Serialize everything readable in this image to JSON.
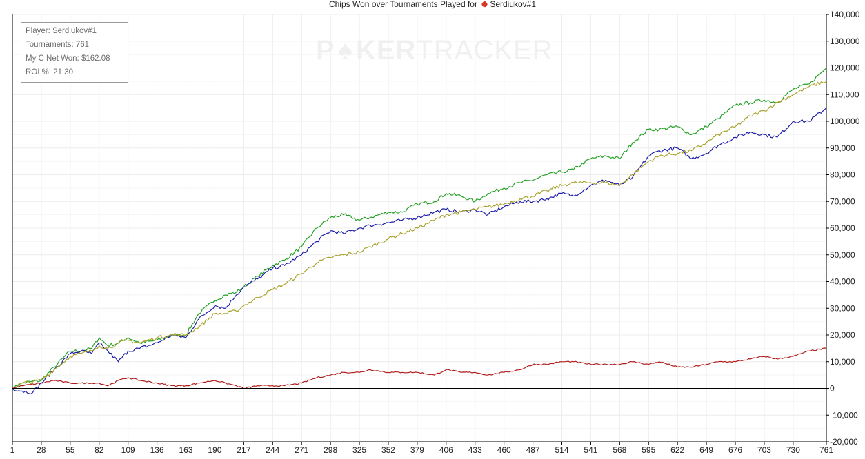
{
  "header": {
    "title_prefix": "Chips Won over Tournaments Played for",
    "player": "Serdiukov#1"
  },
  "info_box": {
    "player": "Player: Serdiukov#1",
    "tournaments": "Tournaments: 761",
    "net_won": "My C Net Won: $162.08",
    "roi": "ROI %: 21.30"
  },
  "watermark": {
    "part1": "P",
    "part2": "KER",
    "part3": "TRACKER"
  },
  "colors": {
    "green": "#22a022",
    "blue": "#1c1caa",
    "olive": "#a8a22a",
    "red": "#b01c1c",
    "grid": "#ececec",
    "zero_line": "#000000"
  },
  "chart_data": {
    "type": "line",
    "title": "Chips Won over Tournaments Played for Serdiukov#1",
    "xlabel": "",
    "ylabel": "",
    "xlim": [
      1,
      761
    ],
    "ylim": [
      -20000,
      140000
    ],
    "x_ticks": [
      "1",
      "28",
      "55",
      "82",
      "109",
      "136",
      "163",
      "190",
      "217",
      "244",
      "271",
      "298",
      "325",
      "352",
      "379",
      "406",
      "433",
      "460",
      "487",
      "514",
      "541",
      "568",
      "595",
      "622",
      "649",
      "676",
      "703",
      "730",
      "761"
    ],
    "y_ticks": [
      "-20,000",
      "-10,000",
      "0",
      "10,000",
      "20,000",
      "30,000",
      "40,000",
      "50,000",
      "60,000",
      "70,000",
      "80,000",
      "90,000",
      "100,000",
      "110,000",
      "120,000",
      "130,000",
      "140,000"
    ],
    "grid": true,
    "series": [
      {
        "color": "green",
        "points": [
          [
            1,
            0
          ],
          [
            10,
            2000
          ],
          [
            28,
            3000
          ],
          [
            40,
            8000
          ],
          [
            55,
            14000
          ],
          [
            65,
            14000
          ],
          [
            75,
            15000
          ],
          [
            82,
            19000
          ],
          [
            90,
            16000
          ],
          [
            100,
            17000
          ],
          [
            109,
            19000
          ],
          [
            120,
            17000
          ],
          [
            136,
            18000
          ],
          [
            150,
            20000
          ],
          [
            163,
            20000
          ],
          [
            175,
            28000
          ],
          [
            190,
            33000
          ],
          [
            200,
            35000
          ],
          [
            210,
            36000
          ],
          [
            217,
            38000
          ],
          [
            230,
            42000
          ],
          [
            244,
            46000
          ],
          [
            255,
            48000
          ],
          [
            271,
            53000
          ],
          [
            285,
            60000
          ],
          [
            298,
            64000
          ],
          [
            310,
            65000
          ],
          [
            325,
            63000
          ],
          [
            335,
            64000
          ],
          [
            352,
            66000
          ],
          [
            365,
            66000
          ],
          [
            379,
            69000
          ],
          [
            395,
            70000
          ],
          [
            406,
            73000
          ],
          [
            420,
            72000
          ],
          [
            433,
            70000
          ],
          [
            445,
            73000
          ],
          [
            460,
            75000
          ],
          [
            475,
            77000
          ],
          [
            487,
            78000
          ],
          [
            500,
            80000
          ],
          [
            514,
            81000
          ],
          [
            525,
            82000
          ],
          [
            541,
            86000
          ],
          [
            555,
            87000
          ],
          [
            568,
            86000
          ],
          [
            580,
            92000
          ],
          [
            595,
            97000
          ],
          [
            605,
            97000
          ],
          [
            622,
            98000
          ],
          [
            635,
            95000
          ],
          [
            649,
            98000
          ],
          [
            660,
            101000
          ],
          [
            676,
            106000
          ],
          [
            690,
            107000
          ],
          [
            703,
            108000
          ],
          [
            715,
            107000
          ],
          [
            730,
            112000
          ],
          [
            745,
            114000
          ],
          [
            761,
            120000
          ]
        ]
      },
      {
        "color": "blue",
        "points": [
          [
            1,
            0
          ],
          [
            10,
            -1000
          ],
          [
            20,
            -1500
          ],
          [
            28,
            2000
          ],
          [
            40,
            7000
          ],
          [
            55,
            13000
          ],
          [
            65,
            14000
          ],
          [
            75,
            13000
          ],
          [
            82,
            17000
          ],
          [
            90,
            14000
          ],
          [
            100,
            10000
          ],
          [
            109,
            14000
          ],
          [
            120,
            15000
          ],
          [
            136,
            17000
          ],
          [
            150,
            20000
          ],
          [
            163,
            19000
          ],
          [
            175,
            26000
          ],
          [
            190,
            31000
          ],
          [
            200,
            30000
          ],
          [
            210,
            35000
          ],
          [
            217,
            38000
          ],
          [
            230,
            41000
          ],
          [
            244,
            45000
          ],
          [
            255,
            46000
          ],
          [
            271,
            50000
          ],
          [
            285,
            55000
          ],
          [
            298,
            59000
          ],
          [
            310,
            58000
          ],
          [
            325,
            60000
          ],
          [
            335,
            61000
          ],
          [
            352,
            62000
          ],
          [
            365,
            63000
          ],
          [
            379,
            64000
          ],
          [
            395,
            66000
          ],
          [
            406,
            67000
          ],
          [
            420,
            66000
          ],
          [
            433,
            67000
          ],
          [
            445,
            65000
          ],
          [
            460,
            68000
          ],
          [
            475,
            70000
          ],
          [
            487,
            70000
          ],
          [
            500,
            71000
          ],
          [
            514,
            73000
          ],
          [
            525,
            72000
          ],
          [
            541,
            76000
          ],
          [
            555,
            78000
          ],
          [
            568,
            76000
          ],
          [
            580,
            79000
          ],
          [
            595,
            87000
          ],
          [
            605,
            89000
          ],
          [
            622,
            90000
          ],
          [
            635,
            86000
          ],
          [
            649,
            88000
          ],
          [
            660,
            91000
          ],
          [
            676,
            94000
          ],
          [
            690,
            96000
          ],
          [
            703,
            95000
          ],
          [
            715,
            94000
          ],
          [
            730,
            100000
          ],
          [
            745,
            100000
          ],
          [
            761,
            105000
          ]
        ]
      },
      {
        "color": "olive",
        "points": [
          [
            1,
            0
          ],
          [
            10,
            2000
          ],
          [
            28,
            3000
          ],
          [
            40,
            7000
          ],
          [
            55,
            12000
          ],
          [
            65,
            13000
          ],
          [
            75,
            14000
          ],
          [
            82,
            16000
          ],
          [
            90,
            15000
          ],
          [
            100,
            17000
          ],
          [
            109,
            18000
          ],
          [
            120,
            17000
          ],
          [
            136,
            19000
          ],
          [
            150,
            20000
          ],
          [
            163,
            20000
          ],
          [
            175,
            23000
          ],
          [
            190,
            28000
          ],
          [
            200,
            28000
          ],
          [
            210,
            29000
          ],
          [
            217,
            31000
          ],
          [
            230,
            34000
          ],
          [
            244,
            37000
          ],
          [
            255,
            39000
          ],
          [
            271,
            43000
          ],
          [
            285,
            47000
          ],
          [
            298,
            49000
          ],
          [
            310,
            50000
          ],
          [
            325,
            51000
          ],
          [
            335,
            53000
          ],
          [
            352,
            56000
          ],
          [
            365,
            58000
          ],
          [
            379,
            60000
          ],
          [
            395,
            63000
          ],
          [
            406,
            65000
          ],
          [
            420,
            66000
          ],
          [
            433,
            67000
          ],
          [
            445,
            68000
          ],
          [
            460,
            69000
          ],
          [
            475,
            71000
          ],
          [
            487,
            72000
          ],
          [
            500,
            74000
          ],
          [
            514,
            76000
          ],
          [
            525,
            77000
          ],
          [
            541,
            77000
          ],
          [
            555,
            77000
          ],
          [
            568,
            76000
          ],
          [
            580,
            80000
          ],
          [
            595,
            85000
          ],
          [
            605,
            87000
          ],
          [
            622,
            88000
          ],
          [
            635,
            89000
          ],
          [
            649,
            92000
          ],
          [
            660,
            95000
          ],
          [
            676,
            98000
          ],
          [
            690,
            102000
          ],
          [
            703,
            104000
          ],
          [
            715,
            107000
          ],
          [
            730,
            110000
          ],
          [
            745,
            113000
          ],
          [
            761,
            115000
          ]
        ]
      },
      {
        "color": "red",
        "points": [
          [
            1,
            0
          ],
          [
            10,
            1000
          ],
          [
            28,
            2000
          ],
          [
            40,
            3000
          ],
          [
            55,
            2000
          ],
          [
            65,
            2000
          ],
          [
            75,
            2000
          ],
          [
            82,
            2000
          ],
          [
            90,
            1000
          ],
          [
            100,
            3000
          ],
          [
            109,
            4000
          ],
          [
            120,
            3000
          ],
          [
            136,
            2000
          ],
          [
            150,
            1000
          ],
          [
            163,
            1000
          ],
          [
            175,
            2000
          ],
          [
            190,
            3000
          ],
          [
            200,
            2000
          ],
          [
            210,
            1000
          ],
          [
            217,
            0
          ],
          [
            230,
            1000
          ],
          [
            244,
            1000
          ],
          [
            255,
            1000
          ],
          [
            271,
            2000
          ],
          [
            285,
            4000
          ],
          [
            298,
            5000
          ],
          [
            310,
            6000
          ],
          [
            325,
            6000
          ],
          [
            335,
            7000
          ],
          [
            352,
            6000
          ],
          [
            365,
            6000
          ],
          [
            379,
            6000
          ],
          [
            395,
            5000
          ],
          [
            406,
            7000
          ],
          [
            420,
            6000
          ],
          [
            433,
            6000
          ],
          [
            445,
            5000
          ],
          [
            460,
            6000
          ],
          [
            475,
            7000
          ],
          [
            487,
            9000
          ],
          [
            500,
            9000
          ],
          [
            514,
            10000
          ],
          [
            525,
            10000
          ],
          [
            541,
            9000
          ],
          [
            555,
            9000
          ],
          [
            568,
            9000
          ],
          [
            580,
            10000
          ],
          [
            595,
            9000
          ],
          [
            605,
            10000
          ],
          [
            622,
            8000
          ],
          [
            635,
            8000
          ],
          [
            649,
            9000
          ],
          [
            660,
            10000
          ],
          [
            676,
            10000
          ],
          [
            690,
            11000
          ],
          [
            703,
            12000
          ],
          [
            715,
            11000
          ],
          [
            730,
            12000
          ],
          [
            745,
            14000
          ],
          [
            761,
            15000
          ]
        ]
      }
    ]
  }
}
